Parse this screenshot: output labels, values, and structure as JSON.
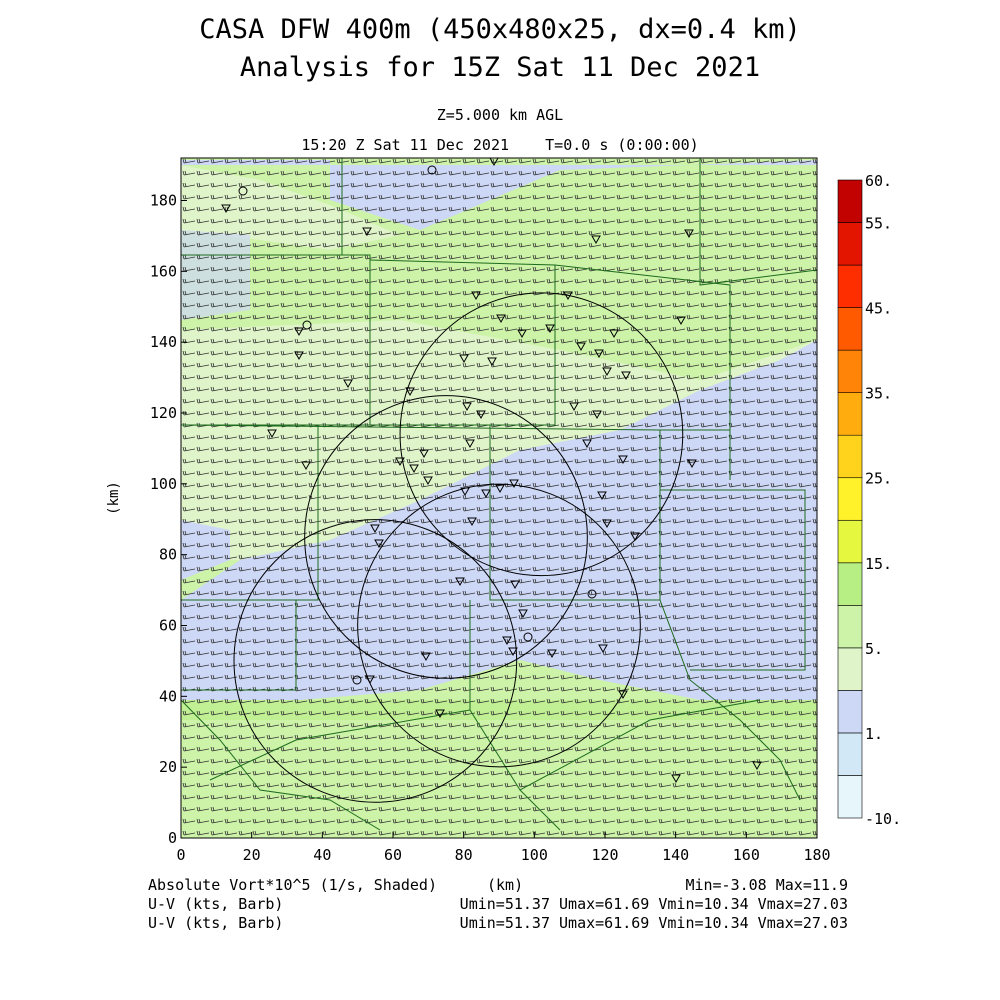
{
  "header": {
    "title_line1": "CASA DFW 400m (450x480x25, dx=0.4 km)",
    "title_line2": "Analysis for 15Z Sat 11 Dec 2021",
    "level": "Z=5.000 km AGL",
    "valid_time": "15:20 Z Sat 11 Dec 2021    T=0.0 s (0:00:00)"
  },
  "footer": {
    "field_label": "Absolute Vort*10^5 (1/s, Shaded)",
    "x_unit": "(km)",
    "field_stats": "Min=-3.08 Max=11.9",
    "barb_label_1": "U-V (kts, Barb)",
    "barb_stats_1": "Umin=51.37 Umax=61.69 Vmin=10.34 Vmax=27.03",
    "barb_label_2": "U-V (kts, Barb)",
    "barb_stats_2": "Umin=51.37 Umax=61.69 Vmin=10.34 Vmax=27.03"
  },
  "chart_data": {
    "type": "heatmap",
    "xlabel": "(km)",
    "ylabel": "(km)",
    "xlim": [
      0,
      180
    ],
    "ylim": [
      0,
      192
    ],
    "x_ticks": [
      0,
      20,
      40,
      60,
      80,
      100,
      120,
      140,
      160,
      180
    ],
    "y_ticks": [
      0,
      20,
      40,
      60,
      80,
      100,
      120,
      140,
      160,
      180
    ],
    "colorbar": {
      "levels": [
        -10,
        -1,
        1,
        3,
        5,
        10,
        15,
        20,
        25,
        30,
        35,
        40,
        45,
        50,
        55,
        60
      ],
      "labels": [
        {
          "value": 0,
          "text": "-10."
        },
        {
          "value": 2,
          "text": "1."
        },
        {
          "value": 4,
          "text": "5."
        },
        {
          "value": 6,
          "text": "15."
        },
        {
          "value": 8,
          "text": "25."
        },
        {
          "value": 10,
          "text": "35."
        },
        {
          "value": 12,
          "text": "45."
        },
        {
          "value": 14,
          "text": "55."
        },
        {
          "value": 15,
          "text": "60."
        }
      ],
      "colors": [
        "#e6f6fb",
        "#d2e8f6",
        "#cdd7f6",
        "#dff5c9",
        "#ccf3a7",
        "#b8ef85",
        "#e6f740",
        "#fff22a",
        "#ffd21c",
        "#ffad0e",
        "#ff8408",
        "#ff5a00",
        "#ff2e00",
        "#e31400",
        "#c10200"
      ]
    },
    "wind_barbs": {
      "direction": "west-southwest",
      "u_range_kts": [
        51.37,
        61.69
      ],
      "v_range_kts": [
        10.34,
        27.03
      ]
    },
    "radar_rings": [
      {
        "cx": 102,
        "cy": 114,
        "r": 40
      },
      {
        "cx": 75,
        "cy": 85,
        "r": 40
      },
      {
        "cx": 90,
        "cy": 60,
        "r": 40
      },
      {
        "cx": 55,
        "cy": 50,
        "r": 40
      }
    ],
    "stats": {
      "min": -3.08,
      "max": 11.9
    }
  }
}
